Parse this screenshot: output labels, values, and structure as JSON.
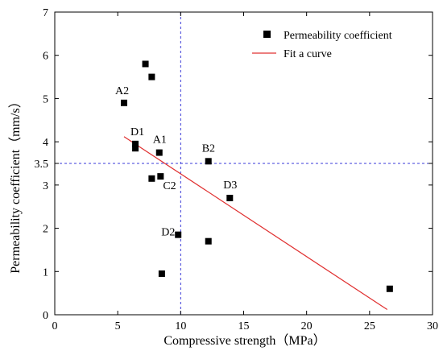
{
  "chart_data": {
    "type": "scatter",
    "xlabel": "Compressive strength（MPa）",
    "ylabel": "Permeability coefficient（mm/s）",
    "xlim": [
      0,
      30
    ],
    "ylim": [
      0,
      7
    ],
    "xticks": [
      0,
      5,
      10,
      15,
      20,
      25,
      30
    ],
    "yticks": [
      0,
      1,
      2,
      3,
      3.5,
      4,
      5,
      6,
      7
    ],
    "xtick_labels": [
      "0",
      "5",
      "10",
      "15",
      "20",
      "25",
      "30"
    ],
    "ytick_labels": [
      "0",
      "1",
      "2",
      "3",
      "3.5",
      "4",
      "5",
      "6",
      "7"
    ],
    "grid": false,
    "legend_position": "top-right",
    "series": [
      {
        "name": "Permeability coefficient",
        "type": "scatter",
        "color": "#000000",
        "marker": "square",
        "points": [
          {
            "x": 7.2,
            "y": 5.8
          },
          {
            "x": 7.7,
            "y": 5.5
          },
          {
            "x": 5.5,
            "y": 4.9
          },
          {
            "x": 6.4,
            "y": 3.95
          },
          {
            "x": 6.4,
            "y": 3.85
          },
          {
            "x": 8.3,
            "y": 3.75
          },
          {
            "x": 7.7,
            "y": 3.15
          },
          {
            "x": 8.4,
            "y": 3.2
          },
          {
            "x": 12.2,
            "y": 3.55
          },
          {
            "x": 13.9,
            "y": 2.7
          },
          {
            "x": 9.8,
            "y": 1.85
          },
          {
            "x": 12.2,
            "y": 1.7
          },
          {
            "x": 8.5,
            "y": 0.95
          },
          {
            "x": 26.6,
            "y": 0.6
          }
        ]
      },
      {
        "name": "Fit a curve",
        "type": "line",
        "color": "#e03030",
        "points": [
          {
            "x": 5.5,
            "y": 4.12
          },
          {
            "x": 26.4,
            "y": 0.12
          }
        ]
      }
    ],
    "reference_lines": [
      {
        "orientation": "vertical",
        "x": 10,
        "color": "#3a3ad8",
        "style": "dashed"
      },
      {
        "orientation": "horizontal",
        "y": 3.5,
        "color": "#3a3ad8",
        "style": "dashed"
      }
    ],
    "annotations": [
      {
        "text": "A2",
        "x": 5.5,
        "y": 4.9
      },
      {
        "text": "D1",
        "x": 6.4,
        "y": 3.95
      },
      {
        "text": "A1",
        "x": 8.3,
        "y": 3.75
      },
      {
        "text": "C2",
        "x": 8.4,
        "y": 3.2
      },
      {
        "text": "B2",
        "x": 12.2,
        "y": 3.55
      },
      {
        "text": "D3",
        "x": 13.9,
        "y": 2.7
      },
      {
        "text": "D2",
        "x": 9.8,
        "y": 1.85
      }
    ]
  }
}
